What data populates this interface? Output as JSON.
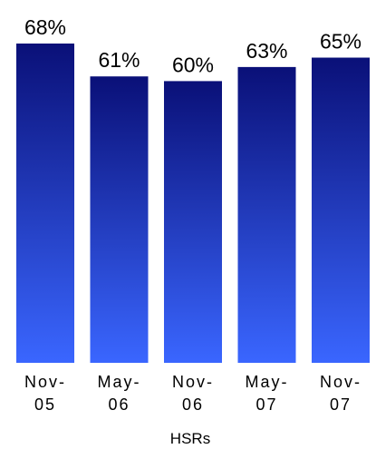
{
  "chart_data": {
    "type": "bar",
    "categories": [
      [
        "Nov-",
        "05"
      ],
      [
        "May-",
        "06"
      ],
      [
        "Nov-",
        "06"
      ],
      [
        "May-",
        "07"
      ],
      [
        "Nov-",
        "07"
      ]
    ],
    "values": [
      68,
      61,
      60,
      63,
      65
    ],
    "data_labels": [
      "68%",
      "61%",
      "60%",
      "63%",
      "65%"
    ],
    "xlabel": "HSRs",
    "ylabel": "",
    "title": "",
    "ylim": [
      0,
      68
    ],
    "grid": false,
    "legend": "none",
    "colors": {
      "bar_top": "#0a1078",
      "bar_bottom": "#3a66ff"
    }
  }
}
